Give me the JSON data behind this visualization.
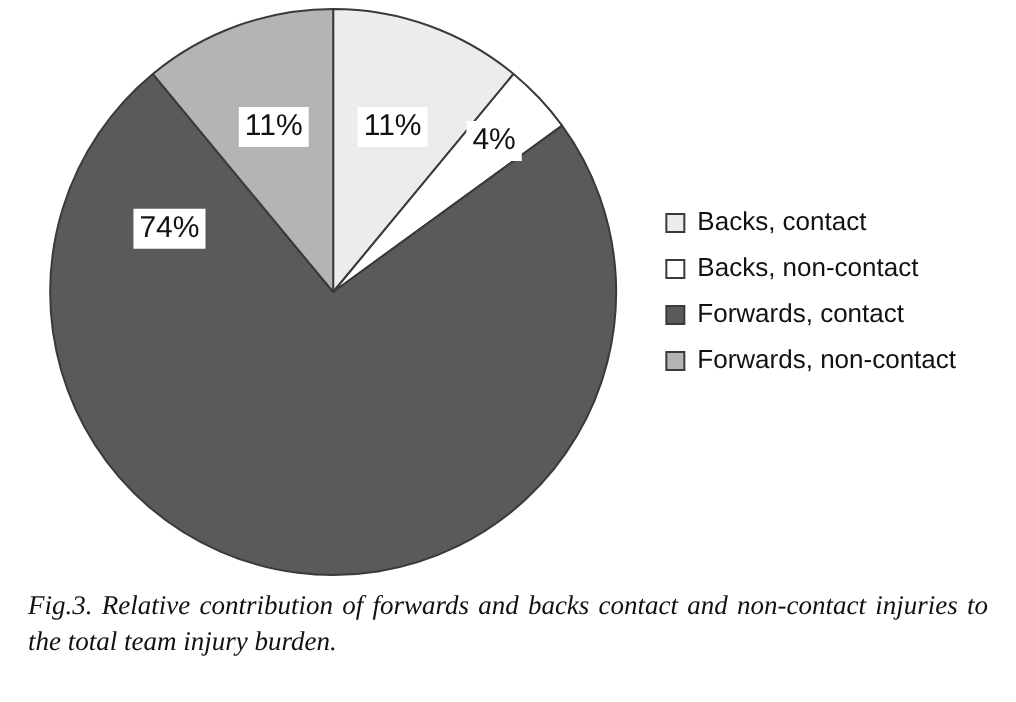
{
  "chart_data": {
    "type": "pie",
    "categories": [
      "Backs, contact",
      "Backs, non-contact",
      "Forwards, contact",
      "Forwards, non-contact"
    ],
    "values": [
      11,
      4,
      74,
      11
    ],
    "colors": [
      "#ececec",
      "#ffffff",
      "#5a5a5a",
      "#b4b4b4"
    ],
    "value_labels": [
      "11%",
      "4%",
      "74%",
      "11%"
    ],
    "legend": "right",
    "annotations": [
      "Fig.3. Relative contribution of forwards and backs contact and non-contact injuries to the total team injury burden."
    ]
  }
}
